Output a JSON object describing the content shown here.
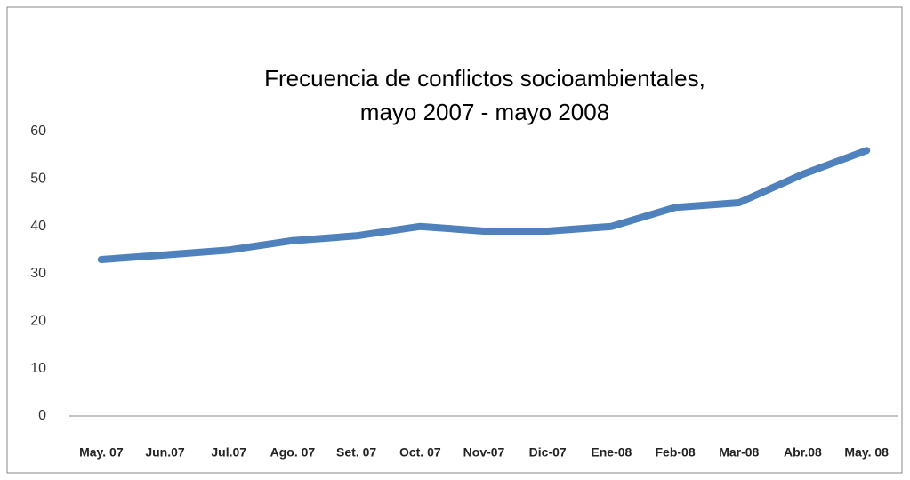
{
  "chart_data": {
    "type": "line",
    "title": [
      "Frecuencia de conflictos socioambientales,",
      "mayo 2007 - mayo 2008"
    ],
    "categories": [
      "May. 07",
      "Jun.07",
      "Jul.07",
      "Ago. 07",
      "Set. 07",
      "Oct. 07",
      "Nov-07",
      "Dic-07",
      "Ene-08",
      "Feb-08",
      "Mar-08",
      "Abr.08",
      "May. 08"
    ],
    "values": [
      33,
      34,
      35,
      37,
      38,
      40,
      39,
      39,
      40,
      44,
      45,
      51,
      56
    ],
    "color": "#4f81bd",
    "ylim": [
      0,
      60
    ],
    "yticks": [
      0,
      10,
      20,
      30,
      40,
      50,
      60
    ],
    "grid": false
  }
}
